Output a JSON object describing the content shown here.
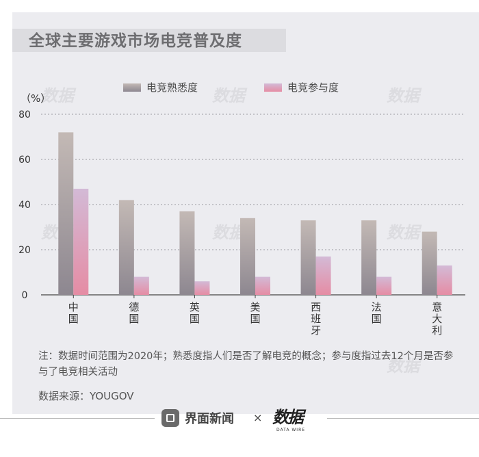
{
  "title": "全球主要游戏市场电竞普及度",
  "unit_label": "（%）",
  "legend": [
    {
      "label": "电竞熟悉度"
    },
    {
      "label": "电竞参与度"
    }
  ],
  "chart_data": {
    "type": "bar",
    "title": "全球主要游戏市场电竞普及度",
    "categories": [
      "中国",
      "德国",
      "英国",
      "美国",
      "西班牙",
      "法国",
      "意大利"
    ],
    "series": [
      {
        "name": "电竞熟悉度",
        "values": [
          72,
          42,
          37,
          34,
          33,
          33,
          28
        ]
      },
      {
        "name": "电竞参与度",
        "values": [
          47,
          8,
          6,
          8,
          17,
          8,
          13
        ]
      }
    ],
    "ylim": [
      0,
      80
    ],
    "yticks": [
      0,
      20,
      40,
      60,
      80
    ],
    "ylabel": "（%）",
    "xlabel": "",
    "grid": true,
    "legend_position": "top"
  },
  "note": "注：数据时间范围为2020年；熟悉度指人们是否了解电竞的概念；参与度指过去12个月是否参与了电竞相关活动",
  "source": "数据来源：YOUGOV",
  "footer": {
    "brand": "界面新闻",
    "separator": "×",
    "partner": "数据",
    "partner_sub": "DATA WIRE"
  },
  "watermark": "数据",
  "colors": {
    "familiarity_top": "#c3b9b5",
    "familiarity_bottom": "#8d8790",
    "participation_top": "#d3bad6",
    "participation_bottom": "#e58ca4",
    "background": "#ececf0"
  }
}
